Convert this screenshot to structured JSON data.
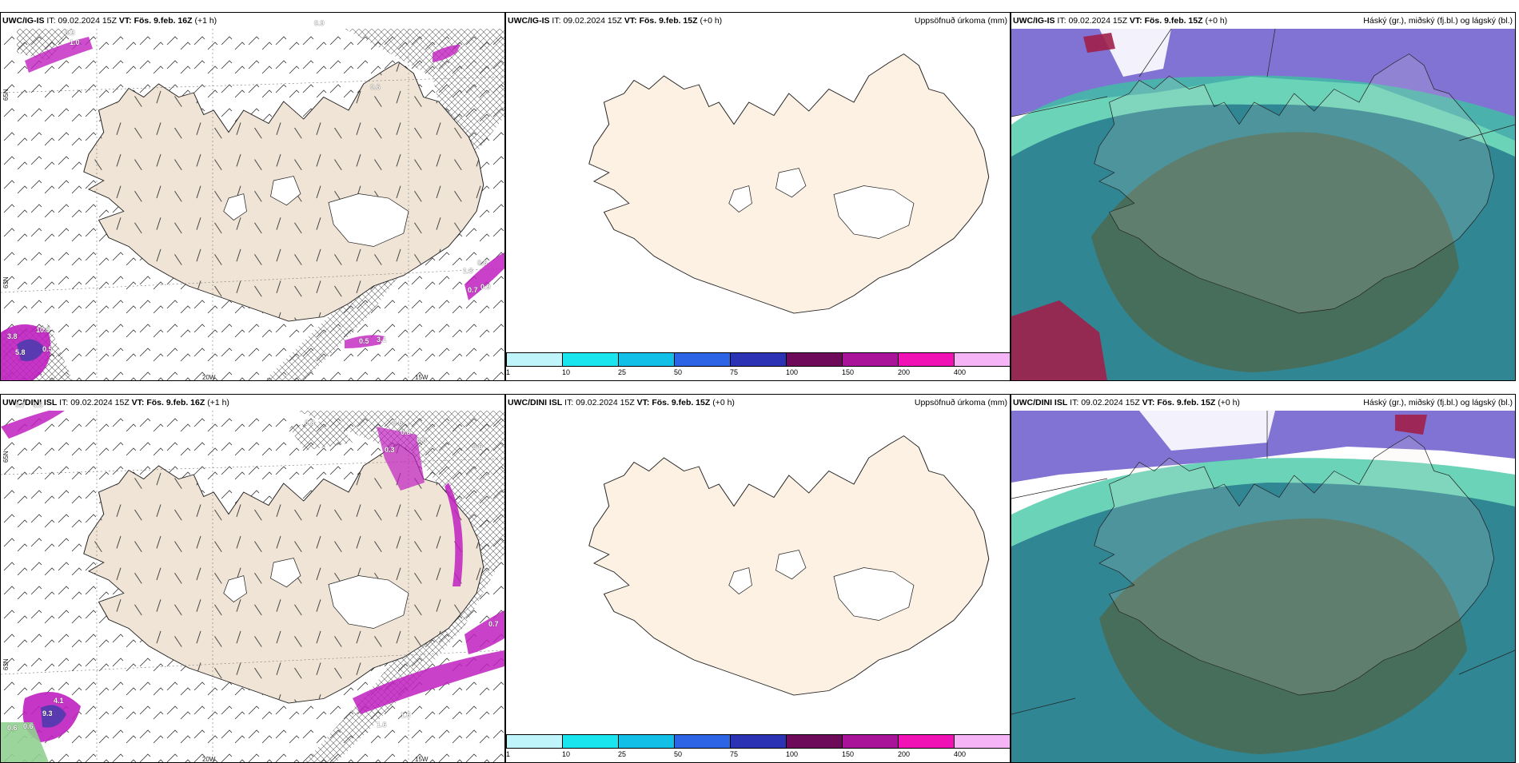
{
  "rows": [
    {
      "panels": [
        {
          "kind": "wind",
          "model": "UWC/IG-IS",
          "it_label": "IT:",
          "it_value": "09.02.2024 15Z",
          "vt_label": "VT:",
          "vt_value": "Fös. 9.feb. 16Z",
          "lead": "(+1 h)",
          "right_title": ""
        },
        {
          "kind": "precip",
          "model": "UWC/IG-IS",
          "it_label": "IT:",
          "it_value": "09.02.2024 15Z",
          "vt_label": "VT:",
          "vt_value": "Fös. 9.feb. 15Z",
          "lead": "(+0 h)",
          "right_title": "Uppsöfnuð úrkoma (mm)"
        },
        {
          "kind": "cloud",
          "model": "UWC/IG-IS",
          "it_label": "IT:",
          "it_value": "09.02.2024 15Z",
          "vt_label": "VT:",
          "vt_value": "Fös. 9.feb. 15Z",
          "lead": "(+0 h)",
          "right_title": "Háský (gr.), miðský (fj.bl.) og lágský (bl.)"
        }
      ]
    },
    {
      "panels": [
        {
          "kind": "wind",
          "model": "UWC/DINI ISL",
          "it_label": "IT:",
          "it_value": "09.02.2024 15Z",
          "vt_label": "VT:",
          "vt_value": "Fös. 9.feb. 16Z",
          "lead": "(+1 h)",
          "right_title": ""
        },
        {
          "kind": "precip",
          "model": "UWC/DINI ISL",
          "it_label": "IT:",
          "it_value": "09.02.2024 15Z",
          "vt_label": "VT:",
          "vt_value": "Fös. 9.feb. 15Z",
          "lead": "(+0 h)",
          "right_title": "Uppsöfnuð úrkoma (mm)"
        },
        {
          "kind": "cloud",
          "model": "UWC/DINI ISL",
          "it_label": "IT:",
          "it_value": "09.02.2024 15Z",
          "vt_label": "VT:",
          "vt_value": "Fös. 9.feb. 15Z",
          "lead": "(+0 h)",
          "right_title": "Háský (gr.), miðský (fj.bl.) og lágský (bl.)"
        }
      ]
    }
  ],
  "wind_axis": {
    "lon_labels": [
      "20W",
      "15W"
    ],
    "lat_labels": [
      "65N",
      "63N"
    ]
  },
  "colorbar": {
    "labels": [
      "1",
      "10",
      "25",
      "50",
      "75",
      "100",
      "150",
      "200",
      "400"
    ],
    "colors": [
      "#bff5fa",
      "#19e5ee",
      "#12bfe6",
      "#2d64e6",
      "#2b32b4",
      "#6e0a5a",
      "#a8139a",
      "#f012b4",
      "#f5b4f5"
    ]
  },
  "wind_labels_top": [
    "0.9",
    "1.0",
    "0.9",
    "0.6",
    "1.3",
    "0.6",
    "0.7",
    "0.9",
    "10.5",
    "3.8",
    "0.5",
    "5.8",
    "0.5",
    "3.1"
  ],
  "wind_labels_bottom": [
    "0.7",
    "0.5",
    "0.8",
    "0.6",
    "0.8",
    "0.3",
    "0.5",
    "0.6",
    "4.1",
    "9.3",
    "0.6",
    "0.6",
    "0.7",
    "1.6",
    "1.6"
  ],
  "colors": {
    "land": "#efe4d5",
    "precip_land": "#fdf1e4",
    "ocean_cloud": "#ffffff",
    "high_cloud": "#6a5acd",
    "mid_cloud": "#2aa198",
    "low_cloud": "#4a6a55"
  }
}
